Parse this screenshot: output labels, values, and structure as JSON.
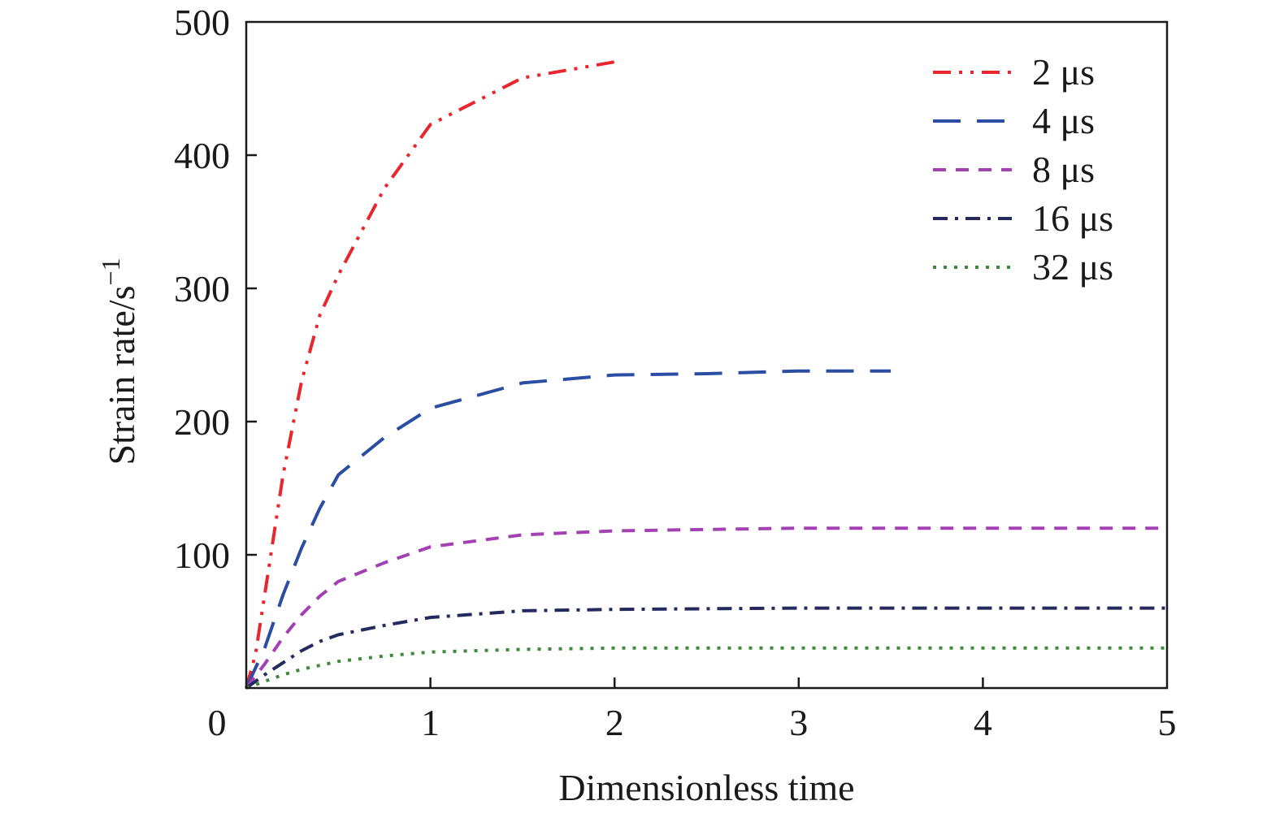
{
  "chart_data": {
    "type": "line",
    "title": "",
    "xlabel": "Dimensionless time",
    "ylabel": "Strain rate/s",
    "ylabel_superscript": "−1",
    "xlim": [
      0,
      5
    ],
    "ylim": [
      0,
      500
    ],
    "xticks": [
      0,
      1,
      2,
      3,
      4,
      5
    ],
    "xtick_labels": [
      "0",
      "1",
      "2",
      "3",
      "4",
      "5"
    ],
    "yticks": [
      100,
      200,
      300,
      400,
      500
    ],
    "ytick_labels": [
      "100",
      "200",
      "300",
      "400",
      "500"
    ],
    "grid": false,
    "legend_position": "top-right",
    "series": [
      {
        "name": "2 μs",
        "color": "#e8262d",
        "dash": "dash-dot-dot",
        "points": [
          [
            0,
            0
          ],
          [
            0.05,
            25
          ],
          [
            0.1,
            70
          ],
          [
            0.2,
            160
          ],
          [
            0.3,
            230
          ],
          [
            0.4,
            280
          ],
          [
            0.5,
            310
          ],
          [
            0.75,
            375
          ],
          [
            1.0,
            423
          ],
          [
            1.5,
            458
          ],
          [
            2.0,
            470
          ]
        ]
      },
      {
        "name": "4 μs",
        "color": "#2b4ea2",
        "dash": "long-dash",
        "points": [
          [
            0,
            0
          ],
          [
            0.1,
            30
          ],
          [
            0.2,
            70
          ],
          [
            0.3,
            105
          ],
          [
            0.4,
            135
          ],
          [
            0.5,
            160
          ],
          [
            0.75,
            188
          ],
          [
            1.0,
            210
          ],
          [
            1.5,
            229
          ],
          [
            2.0,
            235
          ],
          [
            2.5,
            236
          ],
          [
            3.0,
            238
          ],
          [
            3.5,
            238
          ]
        ]
      },
      {
        "name": "8 μs",
        "color": "#a341b3",
        "dash": "dash",
        "points": [
          [
            0,
            0
          ],
          [
            0.1,
            18
          ],
          [
            0.2,
            38
          ],
          [
            0.3,
            55
          ],
          [
            0.4,
            69
          ],
          [
            0.5,
            80
          ],
          [
            0.75,
            94
          ],
          [
            1.0,
            106
          ],
          [
            1.5,
            115
          ],
          [
            2.0,
            118
          ],
          [
            2.5,
            119
          ],
          [
            3.0,
            120
          ],
          [
            4.0,
            120
          ],
          [
            5.0,
            120
          ]
        ]
      },
      {
        "name": "16 μs",
        "color": "#24295e",
        "dash": "dash-dot",
        "points": [
          [
            0,
            0
          ],
          [
            0.1,
            10
          ],
          [
            0.2,
            19
          ],
          [
            0.3,
            28
          ],
          [
            0.4,
            35
          ],
          [
            0.5,
            40
          ],
          [
            0.75,
            47
          ],
          [
            1.0,
            53
          ],
          [
            1.5,
            58
          ],
          [
            2.0,
            59
          ],
          [
            3.0,
            60
          ],
          [
            4.0,
            60
          ],
          [
            5.0,
            60
          ]
        ]
      },
      {
        "name": "32 μs",
        "color": "#3d8a3d",
        "dash": "dot",
        "points": [
          [
            0,
            0
          ],
          [
            0.1,
            5
          ],
          [
            0.2,
            10
          ],
          [
            0.3,
            14
          ],
          [
            0.4,
            17
          ],
          [
            0.5,
            20
          ],
          [
            0.75,
            24
          ],
          [
            1.0,
            27
          ],
          [
            1.5,
            29
          ],
          [
            2.0,
            30
          ],
          [
            3.0,
            30
          ],
          [
            4.0,
            30
          ],
          [
            5.0,
            30
          ]
        ]
      }
    ]
  }
}
